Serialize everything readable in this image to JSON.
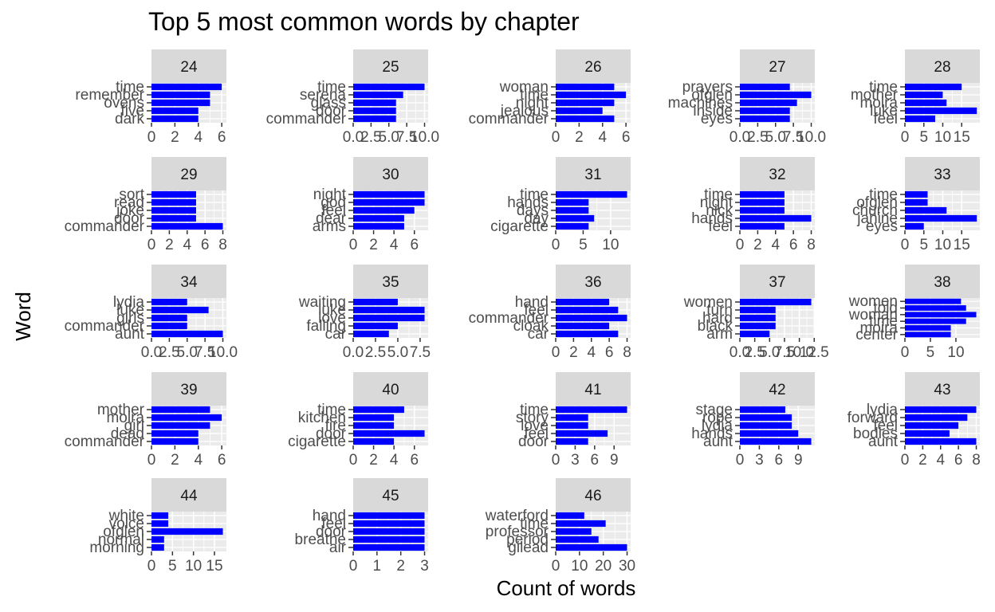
{
  "chart_data": {
    "type": "bar",
    "orientation": "horizontal",
    "faceted": true,
    "title": "Top 5 most common words by chapter",
    "xlabel": "Count of words",
    "ylabel": "Word",
    "bar_color": "#0000ff",
    "panel_bg": "#ebebeb",
    "strip_bg": "#d9d9d9",
    "grid": true,
    "legend": "none",
    "panels": [
      {
        "chapter": "24",
        "xlim": [
          0,
          6.4
        ],
        "xticks": [
          "0",
          "2",
          "4",
          "6"
        ],
        "xtick_values": [
          0,
          2,
          4,
          6
        ],
        "ytick_labels": [
          "time",
          "remember",
          "ovens",
          "five",
          "dark"
        ],
        "bars": [
          {
            "word": "time",
            "value": 6
          },
          {
            "word": "remember",
            "value": 5
          },
          {
            "word": "ovens",
            "value": 5
          },
          {
            "word": "five",
            "value": 4
          },
          {
            "word": "dark",
            "value": 4
          }
        ]
      },
      {
        "chapter": "25",
        "xlim": [
          0,
          10.5
        ],
        "xticks": [
          "0.0",
          "2.5",
          "5.0",
          "7.5",
          "10.0"
        ],
        "xtick_values": [
          0,
          2.5,
          5,
          7.5,
          10
        ],
        "ytick_labels": [
          "time",
          "serena",
          "glass",
          "door",
          "commander"
        ],
        "bars": [
          {
            "word": "time",
            "value": 10
          },
          {
            "word": "serena",
            "value": 7
          },
          {
            "word": "glass",
            "value": 6
          },
          {
            "word": "door",
            "value": 6
          },
          {
            "word": "commander",
            "value": 6
          }
        ]
      },
      {
        "chapter": "26",
        "xlim": [
          0,
          6.4
        ],
        "xticks": [
          "0",
          "2",
          "4",
          "6"
        ],
        "xtick_values": [
          0,
          2,
          4,
          6
        ],
        "ytick_labels": [
          "woman",
          "time",
          "night",
          "jealous",
          "commander"
        ],
        "bars": [
          {
            "word": "woman",
            "value": 5
          },
          {
            "word": "time",
            "value": 6
          },
          {
            "word": "night",
            "value": 5
          },
          {
            "word": "jealous",
            "value": 4
          },
          {
            "word": "commander",
            "value": 5
          }
        ]
      },
      {
        "chapter": "27",
        "xlim": [
          0,
          10.5
        ],
        "xticks": [
          "0.0",
          "2.5",
          "5.0",
          "7.5",
          "10.0"
        ],
        "xtick_values": [
          0,
          2.5,
          5,
          7.5,
          10
        ],
        "ytick_labels": [
          "prayers",
          "ofglen",
          "machines",
          "inside",
          "eyes"
        ],
        "bars": [
          {
            "word": "prayers",
            "value": 7
          },
          {
            "word": "ofglen",
            "value": 10
          },
          {
            "word": "machines",
            "value": 8
          },
          {
            "word": "inside",
            "value": 7
          },
          {
            "word": "eyes",
            "value": 7
          }
        ]
      },
      {
        "chapter": "28",
        "xlim": [
          0,
          19.8
        ],
        "xticks": [
          "0",
          "5",
          "10",
          "15"
        ],
        "xtick_values": [
          0,
          5,
          10,
          15
        ],
        "ytick_labels": [
          "time",
          "mother",
          "moira",
          "luke",
          "feel"
        ],
        "bars": [
          {
            "word": "time",
            "value": 15
          },
          {
            "word": "mother",
            "value": 10
          },
          {
            "word": "moira",
            "value": 11
          },
          {
            "word": "luke",
            "value": 19
          },
          {
            "word": "feel",
            "value": 8
          }
        ]
      },
      {
        "chapter": "29",
        "xlim": [
          0,
          8.4
        ],
        "xticks": [
          "0",
          "2",
          "4",
          "6",
          "8"
        ],
        "xtick_values": [
          0,
          2,
          4,
          6,
          8
        ],
        "ytick_labels": [
          "sort",
          "read",
          "joke",
          "door",
          "commander"
        ],
        "bars": [
          {
            "word": "sort",
            "value": 5
          },
          {
            "word": "read",
            "value": 5
          },
          {
            "word": "joke",
            "value": 5
          },
          {
            "word": "door",
            "value": 5
          },
          {
            "word": "commander",
            "value": 8
          }
        ]
      },
      {
        "chapter": "30",
        "xlim": [
          0,
          7.35
        ],
        "xticks": [
          "0",
          "2",
          "4",
          "6"
        ],
        "xtick_values": [
          0,
          2,
          4,
          6
        ],
        "ytick_labels": [
          "night",
          "god",
          "feel",
          "dear",
          "arms"
        ],
        "bars": [
          {
            "word": "night",
            "value": 7
          },
          {
            "word": "god",
            "value": 7
          },
          {
            "word": "feel",
            "value": 6
          },
          {
            "word": "dear",
            "value": 5
          },
          {
            "word": "arms",
            "value": 5
          }
        ]
      },
      {
        "chapter": "31",
        "xlim": [
          0,
          13.65
        ],
        "xticks": [
          "0",
          "5",
          "10"
        ],
        "xtick_values": [
          0,
          5,
          10
        ],
        "ytick_labels": [
          "time",
          "hands",
          "days",
          "day",
          "cigarette"
        ],
        "bars": [
          {
            "word": "time",
            "value": 13
          },
          {
            "word": "hands",
            "value": 6
          },
          {
            "word": "days",
            "value": 6
          },
          {
            "word": "day",
            "value": 7
          },
          {
            "word": "cigarette",
            "value": 6
          }
        ]
      },
      {
        "chapter": "32",
        "xlim": [
          0,
          8.4
        ],
        "xticks": [
          "0",
          "2",
          "4",
          "6",
          "8"
        ],
        "xtick_values": [
          0,
          2,
          4,
          6,
          8
        ],
        "ytick_labels": [
          "time",
          "night",
          "nick",
          "hands",
          "feel"
        ],
        "bars": [
          {
            "word": "time",
            "value": 5
          },
          {
            "word": "night",
            "value": 5
          },
          {
            "word": "nick",
            "value": 5
          },
          {
            "word": "hands",
            "value": 8
          },
          {
            "word": "feel",
            "value": 5
          }
        ]
      },
      {
        "chapter": "33",
        "xlim": [
          0,
          19.8
        ],
        "xticks": [
          "0",
          "5",
          "10",
          "15"
        ],
        "xtick_values": [
          0,
          5,
          10,
          15
        ],
        "ytick_labels": [
          "time",
          "ofglen",
          "church",
          "janine",
          "eyes"
        ],
        "bars": [
          {
            "word": "time",
            "value": 6
          },
          {
            "word": "ofglen",
            "value": 6
          },
          {
            "word": "church",
            "value": 11
          },
          {
            "word": "janine",
            "value": 19
          },
          {
            "word": "eyes",
            "value": 5
          }
        ]
      },
      {
        "chapter": "34",
        "xlim": [
          0,
          10.5
        ],
        "xticks": [
          "0.0",
          "2.5",
          "5.0",
          "7.5",
          "10.0"
        ],
        "xtick_values": [
          0,
          2.5,
          5,
          7.5,
          10
        ],
        "ytick_labels": [
          "lydia",
          "luke",
          "girls",
          "commander",
          "aunt"
        ],
        "bars": [
          {
            "word": "lydia",
            "value": 5
          },
          {
            "word": "luke",
            "value": 8
          },
          {
            "word": "girls",
            "value": 5
          },
          {
            "word": "commander",
            "value": 5
          },
          {
            "word": "aunt",
            "value": 10
          }
        ]
      },
      {
        "chapter": "35",
        "xlim": [
          0,
          8.4
        ],
        "xticks": [
          "0.0",
          "2.5",
          "5.0",
          "7.5"
        ],
        "xtick_values": [
          0,
          2.5,
          5,
          7.5
        ],
        "ytick_labels": [
          "waiting",
          "luke",
          "love",
          "falling",
          "car"
        ],
        "bars": [
          {
            "word": "waiting",
            "value": 5
          },
          {
            "word": "luke",
            "value": 8
          },
          {
            "word": "love",
            "value": 8
          },
          {
            "word": "falling",
            "value": 5
          },
          {
            "word": "car",
            "value": 4
          }
        ]
      },
      {
        "chapter": "36",
        "xlim": [
          0,
          8.4
        ],
        "xticks": [
          "0",
          "2",
          "4",
          "6",
          "8"
        ],
        "xtick_values": [
          0,
          2,
          4,
          6,
          8
        ],
        "ytick_labels": [
          "hand",
          "feel",
          "commander",
          "cloak",
          "car"
        ],
        "bars": [
          {
            "word": "hand",
            "value": 6
          },
          {
            "word": "feel",
            "value": 7
          },
          {
            "word": "commander",
            "value": 8
          },
          {
            "word": "cloak",
            "value": 6
          },
          {
            "word": "car",
            "value": 7
          }
        ]
      },
      {
        "chapter": "37",
        "xlim": [
          0,
          12.6
        ],
        "xticks": [
          "0.0",
          "2.5",
          "5.0",
          "7.5",
          "10.0",
          "12.5"
        ],
        "xtick_values": [
          0,
          2.5,
          5,
          7.5,
          10,
          12.5
        ],
        "ytick_labels": [
          "women",
          "turn",
          "hard",
          "black",
          "arm"
        ],
        "bars": [
          {
            "word": "women",
            "value": 12
          },
          {
            "word": "turn",
            "value": 6
          },
          {
            "word": "hard",
            "value": 6
          },
          {
            "word": "black",
            "value": 6
          },
          {
            "word": "arm",
            "value": 5
          }
        ]
      },
      {
        "chapter": "38",
        "xlim": [
          0,
          14.7
        ],
        "xticks": [
          "0",
          "5",
          "10"
        ],
        "xtick_values": [
          0,
          5,
          10
        ],
        "ytick_labels": [
          "women",
          "told",
          "woman",
          "time",
          "moira",
          "center"
        ],
        "bars": [
          {
            "word": "women",
            "value": 11
          },
          {
            "word": "told",
            "value": 12
          },
          {
            "word": "woman",
            "value": 14
          },
          {
            "word": "time",
            "value": 12
          },
          {
            "word": "moira",
            "value": 9
          },
          {
            "word": "center",
            "value": 9
          }
        ]
      },
      {
        "chapter": "39",
        "xlim": [
          0,
          6.4
        ],
        "xticks": [
          "0",
          "2",
          "4",
          "6"
        ],
        "xtick_values": [
          0,
          2,
          4,
          6
        ],
        "ytick_labels": [
          "mother",
          "moira",
          "girl",
          "dead",
          "commander"
        ],
        "bars": [
          {
            "word": "mother",
            "value": 5
          },
          {
            "word": "moira",
            "value": 6
          },
          {
            "word": "girl",
            "value": 5
          },
          {
            "word": "dead",
            "value": 4
          },
          {
            "word": "commander",
            "value": 4
          }
        ]
      },
      {
        "chapter": "40",
        "xlim": [
          0,
          7.35
        ],
        "xticks": [
          "0",
          "2",
          "4",
          "6"
        ],
        "xtick_values": [
          0,
          2,
          4,
          6
        ],
        "ytick_labels": [
          "time",
          "kitchen",
          "fire",
          "door",
          "cigarette"
        ],
        "bars": [
          {
            "word": "time",
            "value": 5
          },
          {
            "word": "kitchen",
            "value": 4
          },
          {
            "word": "fire",
            "value": 4
          },
          {
            "word": "door",
            "value": 7
          },
          {
            "word": "cigarette",
            "value": 4
          }
        ]
      },
      {
        "chapter": "41",
        "xlim": [
          0,
          11.55
        ],
        "xticks": [
          "0",
          "3",
          "6",
          "9"
        ],
        "xtick_values": [
          0,
          3,
          6,
          9
        ],
        "ytick_labels": [
          "time",
          "story",
          "love",
          "feel",
          "door"
        ],
        "bars": [
          {
            "word": "time",
            "value": 11
          },
          {
            "word": "story",
            "value": 5
          },
          {
            "word": "love",
            "value": 5
          },
          {
            "word": "feel",
            "value": 8
          },
          {
            "word": "door",
            "value": 5
          }
        ]
      },
      {
        "chapter": "42",
        "xlim": [
          0,
          11.55
        ],
        "xticks": [
          "0",
          "3",
          "6",
          "9"
        ],
        "xtick_values": [
          0,
          3,
          6,
          9
        ],
        "ytick_labels": [
          "stage",
          "rope",
          "lydia",
          "hands",
          "aunt"
        ],
        "bars": [
          {
            "word": "stage",
            "value": 7
          },
          {
            "word": "rope",
            "value": 8
          },
          {
            "word": "lydia",
            "value": 8
          },
          {
            "word": "hands",
            "value": 9
          },
          {
            "word": "aunt",
            "value": 11
          }
        ]
      },
      {
        "chapter": "43",
        "xlim": [
          0,
          8.4
        ],
        "xticks": [
          "0",
          "2",
          "4",
          "6",
          "8"
        ],
        "xtick_values": [
          0,
          2,
          4,
          6,
          8
        ],
        "ytick_labels": [
          "lydia",
          "forward",
          "feel",
          "bodies",
          "aunt"
        ],
        "bars": [
          {
            "word": "lydia",
            "value": 8
          },
          {
            "word": "forward",
            "value": 7
          },
          {
            "word": "feel",
            "value": 6
          },
          {
            "word": "bodies",
            "value": 5
          },
          {
            "word": "aunt",
            "value": 8
          }
        ]
      },
      {
        "chapter": "44",
        "xlim": [
          0,
          17.85
        ],
        "xticks": [
          "0",
          "5",
          "10",
          "15"
        ],
        "xtick_values": [
          0,
          5,
          10,
          15
        ],
        "ytick_labels": [
          "white",
          "voice",
          "ofglen",
          "normal",
          "morning"
        ],
        "bars": [
          {
            "word": "white",
            "value": 4
          },
          {
            "word": "voice",
            "value": 4
          },
          {
            "word": "ofglen",
            "value": 17
          },
          {
            "word": "normal",
            "value": 3
          },
          {
            "word": "morning",
            "value": 3
          }
        ]
      },
      {
        "chapter": "45",
        "xlim": [
          0,
          3.15
        ],
        "xticks": [
          "0",
          "1",
          "2",
          "3"
        ],
        "xtick_values": [
          0,
          1,
          2,
          3
        ],
        "ytick_labels": [
          "hand",
          "feel",
          "door",
          "breathe",
          "air"
        ],
        "bars": [
          {
            "word": "hand",
            "value": 3
          },
          {
            "word": "feel",
            "value": 3
          },
          {
            "word": "door",
            "value": 3
          },
          {
            "word": "breathe",
            "value": 3
          },
          {
            "word": "air",
            "value": 3
          }
        ]
      },
      {
        "chapter": "46",
        "xlim": [
          0,
          31.5
        ],
        "xticks": [
          "0",
          "10",
          "20",
          "30"
        ],
        "xtick_values": [
          0,
          10,
          20,
          30
        ],
        "ytick_labels": [
          "waterford",
          "time",
          "professor",
          "period",
          "gilead"
        ],
        "bars": [
          {
            "word": "waterford",
            "value": 12
          },
          {
            "word": "time",
            "value": 21
          },
          {
            "word": "professor",
            "value": 15
          },
          {
            "word": "period",
            "value": 18
          },
          {
            "word": "gilead",
            "value": 30
          }
        ]
      }
    ]
  }
}
